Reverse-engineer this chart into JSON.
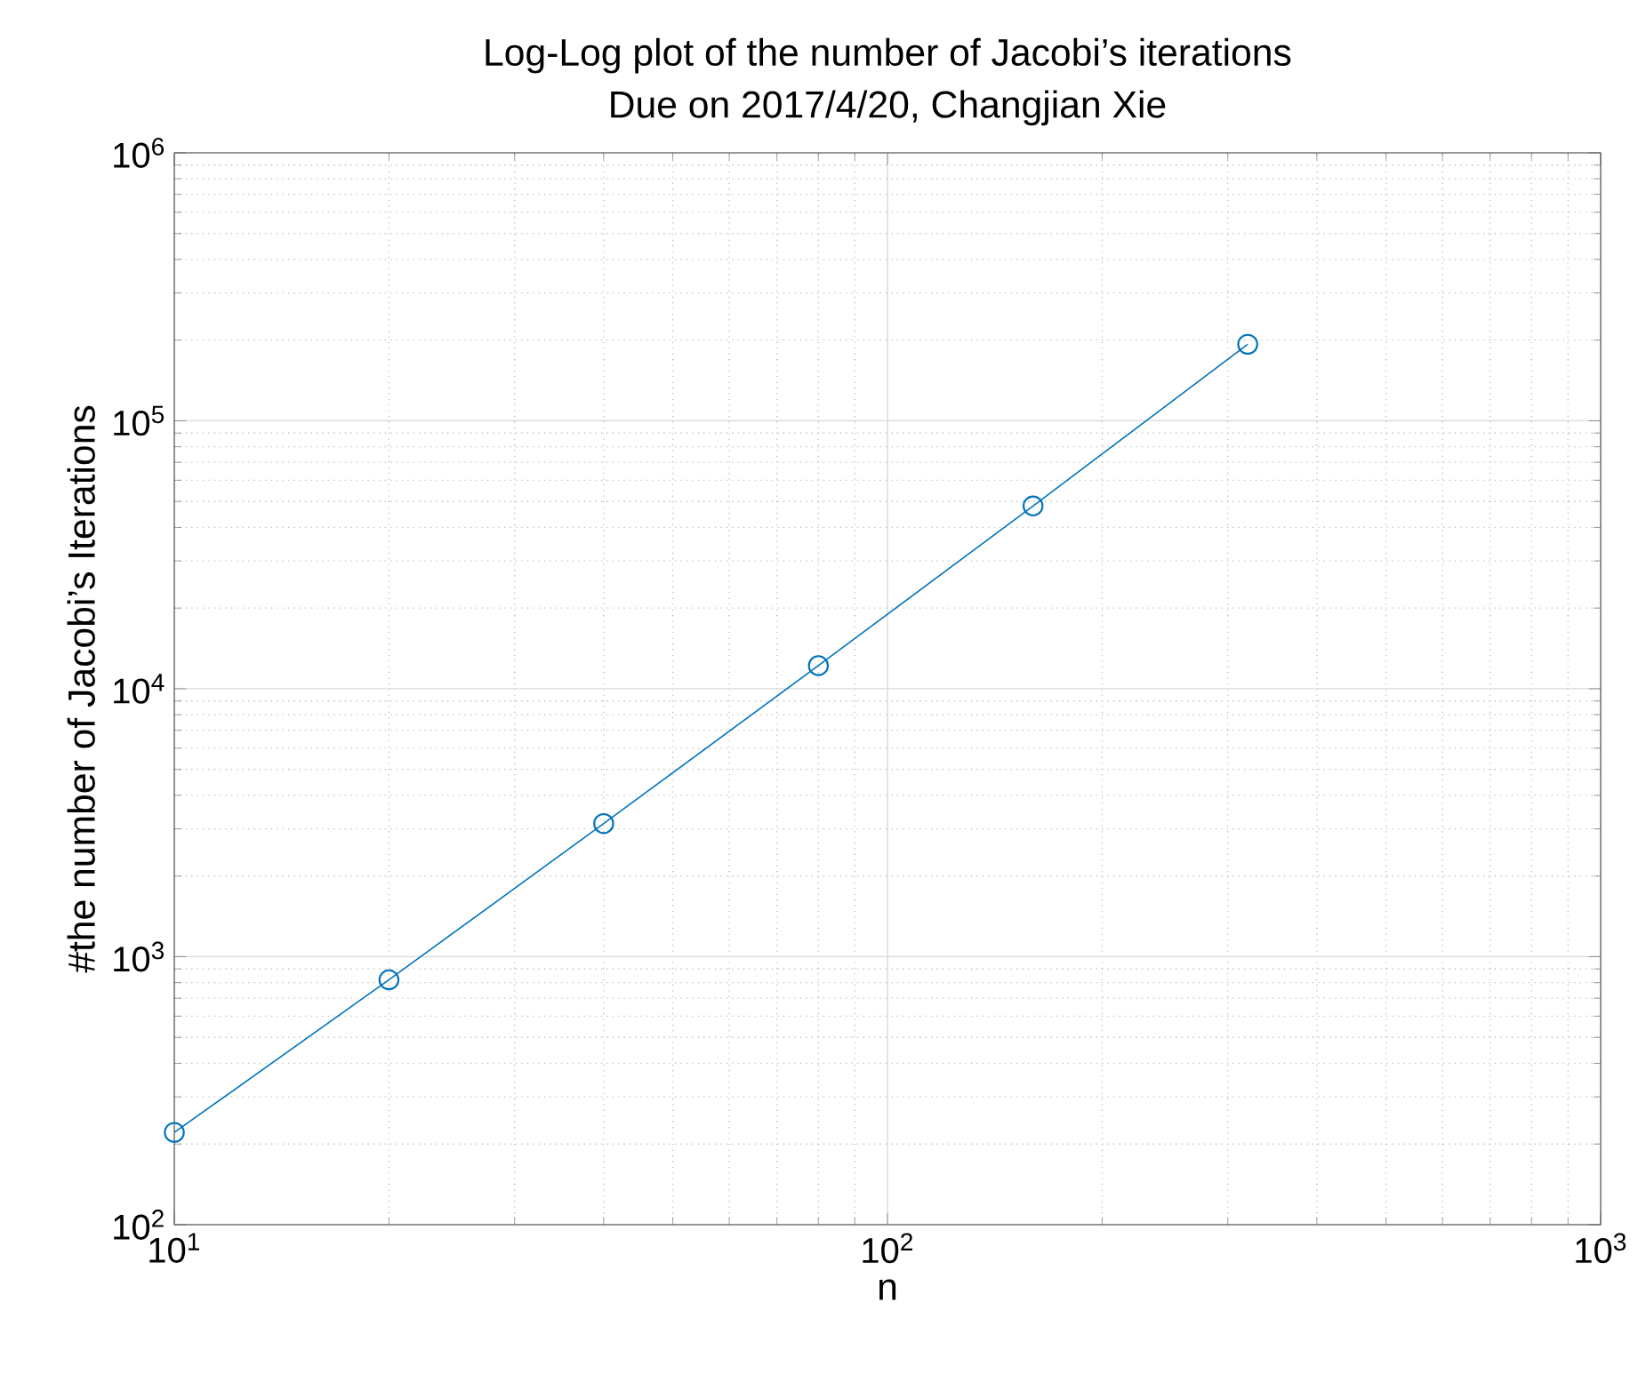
{
  "chart_data": {
    "type": "line",
    "title": "Log-Log plot of the number of Jacobi’s iterations",
    "subtitle": "Due on 2017/4/20, Changjian Xie",
    "xlabel": "n",
    "ylabel": "#the number of Jacobi’s Iterations",
    "x": [
      10,
      20,
      40,
      80,
      160,
      320
    ],
    "series": [
      {
        "color": "#0072bd",
        "values": [
          221,
          820,
          3140,
          12200,
          48100,
          193000
        ]
      }
    ],
    "log": "xy",
    "grid": true,
    "marker": "circle",
    "line_style": "solid",
    "xlim": [
      10,
      1000
    ],
    "xticks": [
      {
        "value": 10,
        "label": "10$^{1}$"
      },
      {
        "value": 100,
        "label": "10$^{2}$"
      },
      {
        "value": 1000,
        "label": "10$^{3}$"
      }
    ],
    "ylim": [
      100,
      1000000
    ],
    "yticks": [
      {
        "value": 100,
        "label": "10$^{2}$"
      },
      {
        "value": 1000,
        "label": "10$^{3}$"
      },
      {
        "value": 10000,
        "label": "10$^{4}$"
      },
      {
        "value": 100000,
        "label": "10$^{5}$"
      },
      {
        "value": 1000000,
        "label": "10$^{6}$"
      }
    ]
  }
}
